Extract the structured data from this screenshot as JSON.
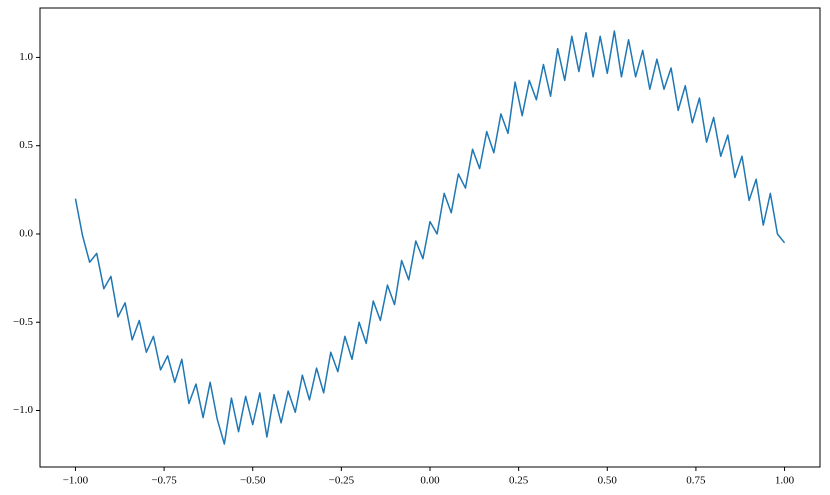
{
  "chart_data": {
    "type": "line",
    "x": [
      -1,
      -0.98,
      -0.96,
      -0.94,
      -0.92,
      -0.9,
      -0.88,
      -0.86,
      -0.84,
      -0.82,
      -0.8,
      -0.78,
      -0.76,
      -0.74,
      -0.72,
      -0.7,
      -0.68,
      -0.66,
      -0.64,
      -0.62,
      -0.6,
      -0.58,
      -0.56,
      -0.54,
      -0.52,
      -0.5,
      -0.48,
      -0.46,
      -0.44,
      -0.42,
      -0.4,
      -0.38,
      -0.36,
      -0.34,
      -0.32,
      -0.3,
      -0.28,
      -0.26,
      -0.24,
      -0.22,
      -0.2,
      -0.18,
      -0.16,
      -0.14,
      -0.12,
      -0.1,
      -0.08,
      -0.06,
      -0.04,
      -0.02,
      0,
      0.02,
      0.04,
      0.06,
      0.08,
      0.1,
      0.12,
      0.14,
      0.16,
      0.18,
      0.2,
      0.22,
      0.24,
      0.26,
      0.28,
      0.3,
      0.32,
      0.34,
      0.36,
      0.38,
      0.4,
      0.42,
      0.44,
      0.46,
      0.48,
      0.5,
      0.52,
      0.54,
      0.56,
      0.58,
      0.6,
      0.62,
      0.64,
      0.66,
      0.68,
      0.7,
      0.72,
      0.74,
      0.76,
      0.78,
      0.8,
      0.82,
      0.84,
      0.86,
      0.88,
      0.9,
      0.92,
      0.94,
      0.96,
      0.98,
      1
    ],
    "series": [
      {
        "color": "#1f77b4",
        "values": [
          0.2,
          -0.01,
          -0.16,
          -0.11,
          -0.31,
          -0.24,
          -0.47,
          -0.39,
          -0.6,
          -0.49,
          -0.67,
          -0.58,
          -0.77,
          -0.69,
          -0.84,
          -0.71,
          -0.96,
          -0.85,
          -1.04,
          -0.84,
          -1.05,
          -1.19,
          -0.93,
          -1.12,
          -0.92,
          -1.08,
          -0.9,
          -1.15,
          -0.91,
          -1.07,
          -0.89,
          -1.01,
          -0.8,
          -0.94,
          -0.76,
          -0.9,
          -0.67,
          -0.78,
          -0.58,
          -0.71,
          -0.5,
          -0.62,
          -0.38,
          -0.49,
          -0.29,
          -0.4,
          -0.15,
          -0.26,
          -0.04,
          -0.14,
          0.07,
          0,
          0.23,
          0.12,
          0.34,
          0.26,
          0.48,
          0.37,
          0.58,
          0.46,
          0.68,
          0.57,
          0.86,
          0.67,
          0.87,
          0.76,
          0.96,
          0.78,
          1.05,
          0.87,
          1.12,
          0.92,
          1.14,
          0.89,
          1.12,
          0.91,
          1.15,
          0.89,
          1.1,
          0.89,
          1.04,
          0.82,
          0.99,
          0.82,
          0.94,
          0.7,
          0.84,
          0.63,
          0.77,
          0.52,
          0.66,
          0.44,
          0.56,
          0.32,
          0.44,
          0.19,
          0.31,
          0.05,
          0.23,
          0,
          -0.05
        ]
      }
    ],
    "xlim": [
      -1.1,
      1.1
    ],
    "xticks": [
      {
        "value": -1,
        "label": "−1.00"
      },
      {
        "value": -0.75,
        "label": "−0.75"
      },
      {
        "value": -0.5,
        "label": "−0.50"
      },
      {
        "value": -0.25,
        "label": "−0.25"
      },
      {
        "value": 0,
        "label": "0.00"
      },
      0.25,
      {
        "value": 0.5,
        "label": "0.50"
      },
      0.75,
      {
        "value": 1,
        "label": "1.00"
      }
    ],
    "ylim": [
      -1.32,
      1.28
    ],
    "yticks": [
      {
        "value": -1,
        "label": "−1.0"
      },
      {
        "value": -0.5,
        "label": "−0.5"
      },
      {
        "value": 0,
        "label": "0.0"
      },
      0.5,
      {
        "value": 1,
        "label": "1.0"
      }
    ]
  }
}
